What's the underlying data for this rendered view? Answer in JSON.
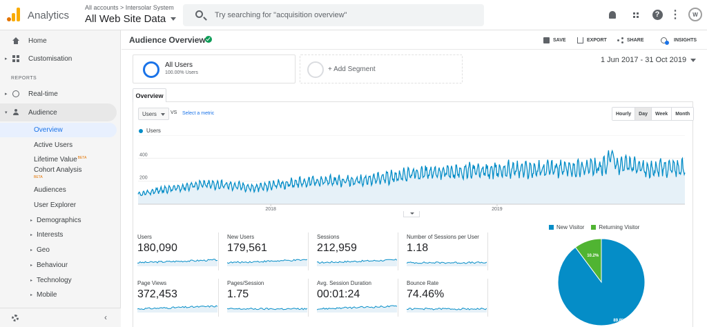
{
  "topbar": {
    "app_name": "Analytics",
    "breadcrumb": "All accounts > Intersolar System",
    "view_name": "All Web Site Data",
    "search_placeholder": "Try searching for \"acquisition overview\"",
    "avatar_text": "W"
  },
  "sidebar": {
    "home": "Home",
    "customisation": "Customisation",
    "reports_label": "REPORTS",
    "realtime": "Real-time",
    "audience": "Audience",
    "sub_items": {
      "overview": "Overview",
      "active_users": "Active Users",
      "lifetime_value": "Lifetime Value",
      "cohort_analysis": "Cohort Analysis",
      "audiences": "Audiences",
      "user_explorer": "User Explorer",
      "demographics": "Demographics",
      "interests": "Interests",
      "geo": "Geo",
      "behaviour": "Behaviour",
      "technology": "Technology",
      "mobile": "Mobile"
    },
    "beta_label": "BETA"
  },
  "header": {
    "title": "Audience Overview",
    "save": "SAVE",
    "export": "EXPORT",
    "share": "SHARE",
    "insights": "INSIGHTS"
  },
  "segments": {
    "primary_name": "All Users",
    "primary_pct": "100.00% Users",
    "add_label": "+ Add Segment"
  },
  "date_range": "1 Jun 2017 - 31 Oct 2019",
  "tabs": {
    "overview": "Overview"
  },
  "chart_controls": {
    "metric": "Users",
    "vs": "VS",
    "select_metric": "Select a metric",
    "ranges": [
      "Hourly",
      "Day",
      "Week",
      "Month"
    ],
    "active_range": "Day"
  },
  "chart_data": [
    {
      "type": "area",
      "series": [
        {
          "name": "Users",
          "color": "#058dc7"
        }
      ],
      "x_ticks": [
        "2018",
        "2019"
      ],
      "y_ticks": [
        200,
        400,
        600
      ],
      "ylim": [
        0,
        600
      ],
      "xlim": [
        "2017-06-01",
        "2019-10-31"
      ],
      "monthly_avg": [
        80,
        120,
        140,
        170,
        170,
        160,
        140,
        170,
        185,
        200,
        200,
        200,
        215,
        240,
        265,
        275,
        280,
        290,
        285,
        305,
        300,
        305,
        310,
        320,
        330,
        340,
        300,
        320,
        310
      ],
      "peak": {
        "date": "2019-07",
        "value": 420
      }
    },
    {
      "type": "pie",
      "series": [
        {
          "name": "New Visitor",
          "value": 89.8,
          "color": "#058dc7",
          "label": "89.8%"
        },
        {
          "name": "Returning Visitor",
          "value": 10.2,
          "color": "#50b432",
          "label": "10.2%"
        }
      ]
    }
  ],
  "metrics": [
    {
      "label": "Users",
      "value": "180,090"
    },
    {
      "label": "New Users",
      "value": "179,561"
    },
    {
      "label": "Sessions",
      "value": "212,959"
    },
    {
      "label": "Number of Sessions per User",
      "value": "1.18"
    },
    {
      "label": "Page Views",
      "value": "372,453"
    },
    {
      "label": "Pages/Session",
      "value": "1.75"
    },
    {
      "label": "Avg. Session Duration",
      "value": "00:01:24"
    },
    {
      "label": "Bounce Rate",
      "value": "74.46%"
    }
  ],
  "colors": {
    "accent": "#1a73e8",
    "series_blue": "#058dc7",
    "series_green": "#50b432"
  }
}
